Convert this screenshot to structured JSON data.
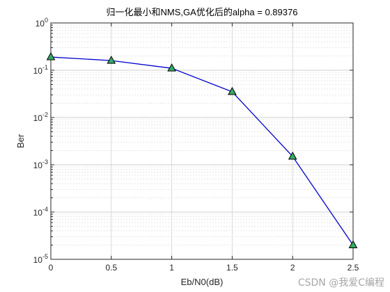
{
  "chart_data": {
    "type": "line",
    "title": "归一化最小和NMS,GA优化后的alpha = 0.89376",
    "xlabel": "Eb/N0(dB)",
    "ylabel": "Ber",
    "xlim": [
      0,
      2.5
    ],
    "ylim": [
      1e-05,
      1
    ],
    "yscale": "log",
    "grid": true,
    "x_ticks": [
      "0",
      "0.5",
      "1",
      "1.5",
      "2",
      "2.5"
    ],
    "y_tick_exponents": [
      "0",
      "-1",
      "-2",
      "-3",
      "-4",
      "-5"
    ],
    "series": [
      {
        "x": [
          0,
          0.5,
          1,
          1.5,
          2,
          2.5
        ],
        "values": [
          0.19,
          0.16,
          0.11,
          0.035,
          0.0015,
          2e-05
        ],
        "line_color": "#0000cc",
        "marker": "triangle",
        "marker_color": "#33aa66"
      }
    ]
  },
  "watermark": "CSDN @我爱C编程"
}
